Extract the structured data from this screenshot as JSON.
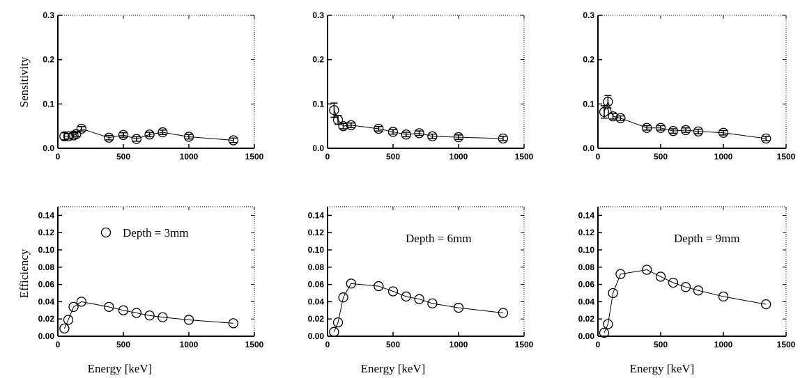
{
  "figure": {
    "x_axis_title": "Energy [keV]",
    "row_titles": [
      "Sensitivity",
      "Efficiency"
    ]
  },
  "chart_data": [
    {
      "type": "line",
      "title": "",
      "xlabel": "",
      "ylabel": "Sensitivity",
      "xlim": [
        0,
        1500
      ],
      "ylim": [
        0,
        0.3
      ],
      "x_ticks": [
        0,
        500,
        1000,
        1500
      ],
      "y_ticks": [
        0.0,
        0.1,
        0.2,
        0.3
      ],
      "y_tick_labels": [
        "0.0",
        "0.1",
        "0.2",
        "0.3"
      ],
      "series": [
        {
          "x": [
            50,
            80,
            120,
            140,
            180,
            390,
            500,
            600,
            700,
            800,
            1000,
            1340
          ],
          "y": [
            0.027,
            0.027,
            0.029,
            0.032,
            0.044,
            0.024,
            0.03,
            0.021,
            0.031,
            0.036,
            0.026,
            0.018
          ],
          "err": [
            0.008,
            0.006,
            0.006,
            0.005,
            0.005,
            0.005,
            0.005,
            0.005,
            0.005,
            0.005,
            0.005,
            0.005
          ]
        }
      ],
      "annotation": ""
    },
    {
      "type": "line",
      "title": "",
      "xlabel": "",
      "ylabel": "",
      "xlim": [
        0,
        1500
      ],
      "ylim": [
        0,
        0.3
      ],
      "x_ticks": [
        0,
        500,
        1000,
        1500
      ],
      "y_ticks": [
        0.0,
        0.1,
        0.2,
        0.3
      ],
      "y_tick_labels": [
        "0.0",
        "0.1",
        "0.2",
        "0.3"
      ],
      "series": [
        {
          "x": [
            50,
            80,
            120,
            180,
            390,
            500,
            600,
            700,
            800,
            1000,
            1340
          ],
          "y": [
            0.086,
            0.064,
            0.05,
            0.052,
            0.044,
            0.037,
            0.031,
            0.034,
            0.027,
            0.025,
            0.022
          ],
          "err": [
            0.016,
            0.01,
            0.006,
            0.005,
            0.005,
            0.005,
            0.005,
            0.005,
            0.005,
            0.005,
            0.005
          ]
        }
      ],
      "annotation": ""
    },
    {
      "type": "line",
      "title": "",
      "xlabel": "",
      "ylabel": "",
      "xlim": [
        0,
        1500
      ],
      "ylim": [
        0,
        0.3
      ],
      "x_ticks": [
        0,
        500,
        1000,
        1500
      ],
      "y_ticks": [
        0.0,
        0.1,
        0.2,
        0.3
      ],
      "y_tick_labels": [
        "0.0",
        "0.1",
        "0.2",
        "0.3"
      ],
      "series": [
        {
          "x": [
            50,
            80,
            120,
            180,
            390,
            500,
            600,
            700,
            800,
            1000,
            1340
          ],
          "y": [
            0.082,
            0.105,
            0.072,
            0.068,
            0.046,
            0.046,
            0.039,
            0.041,
            0.038,
            0.035,
            0.022
          ],
          "err": [
            0.014,
            0.014,
            0.006,
            0.005,
            0.005,
            0.005,
            0.005,
            0.005,
            0.005,
            0.005,
            0.005
          ]
        }
      ],
      "annotation": ""
    },
    {
      "type": "line",
      "title": "",
      "xlabel": "Energy [keV]",
      "ylabel": "Efficiency",
      "xlim": [
        0,
        1500
      ],
      "ylim": [
        0,
        0.15
      ],
      "x_ticks": [
        0,
        500,
        1000,
        1500
      ],
      "y_ticks": [
        0.0,
        0.02,
        0.04,
        0.06,
        0.08,
        0.1,
        0.12,
        0.14
      ],
      "y_tick_labels": [
        "0.00",
        "0.02",
        "0.04",
        "0.06",
        "0.08",
        "0.10",
        "0.12",
        "0.14"
      ],
      "series": [
        {
          "x": [
            50,
            80,
            120,
            180,
            390,
            500,
            600,
            700,
            800,
            1000,
            1340
          ],
          "y": [
            0.009,
            0.019,
            0.034,
            0.04,
            0.034,
            0.03,
            0.027,
            0.024,
            0.022,
            0.019,
            0.015
          ],
          "err": []
        }
      ],
      "annotation": "Depth = 3mm",
      "annotation_marker": true
    },
    {
      "type": "line",
      "title": "",
      "xlabel": "Energy [keV]",
      "ylabel": "",
      "xlim": [
        0,
        1500
      ],
      "ylim": [
        0,
        0.15
      ],
      "x_ticks": [
        0,
        500,
        1000,
        1500
      ],
      "y_ticks": [
        0.0,
        0.02,
        0.04,
        0.06,
        0.08,
        0.1,
        0.12,
        0.14
      ],
      "y_tick_labels": [
        "0.00",
        "0.02",
        "0.04",
        "0.06",
        "0.08",
        "0.10",
        "0.12",
        "0.14"
      ],
      "series": [
        {
          "x": [
            50,
            80,
            120,
            180,
            390,
            500,
            600,
            700,
            800,
            1000,
            1340
          ],
          "y": [
            0.005,
            0.016,
            0.045,
            0.061,
            0.058,
            0.052,
            0.046,
            0.043,
            0.038,
            0.033,
            0.027
          ],
          "err": []
        }
      ],
      "annotation": "Depth = 6mm",
      "annotation_marker": false
    },
    {
      "type": "line",
      "title": "",
      "xlabel": "Energy [keV]",
      "ylabel": "",
      "xlim": [
        0,
        1500
      ],
      "ylim": [
        0,
        0.15
      ],
      "x_ticks": [
        0,
        500,
        1000,
        1500
      ],
      "y_ticks": [
        0.0,
        0.02,
        0.04,
        0.06,
        0.08,
        0.1,
        0.12,
        0.14
      ],
      "y_tick_labels": [
        "0.00",
        "0.02",
        "0.04",
        "0.06",
        "0.08",
        "0.10",
        "0.12",
        "0.14"
      ],
      "series": [
        {
          "x": [
            50,
            80,
            120,
            180,
            390,
            500,
            600,
            700,
            800,
            1000,
            1340
          ],
          "y": [
            0.004,
            0.014,
            0.05,
            0.072,
            0.077,
            0.069,
            0.062,
            0.057,
            0.053,
            0.046,
            0.037
          ],
          "err": []
        }
      ],
      "annotation": "Depth = 9mm",
      "annotation_marker": false
    }
  ]
}
